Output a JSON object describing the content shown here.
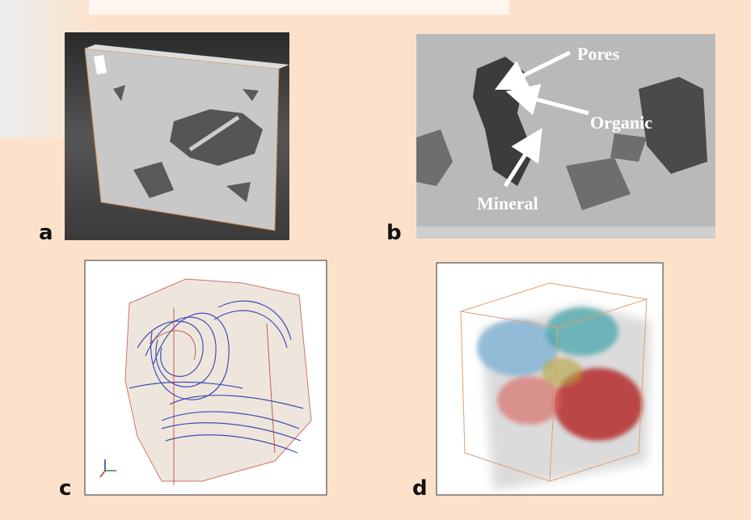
{
  "panels": [
    {
      "label": "a"
    },
    {
      "label": "b",
      "annotations": [
        "Pores",
        "Organic",
        "Mineral"
      ]
    },
    {
      "label": "c"
    },
    {
      "label": "d"
    }
  ]
}
